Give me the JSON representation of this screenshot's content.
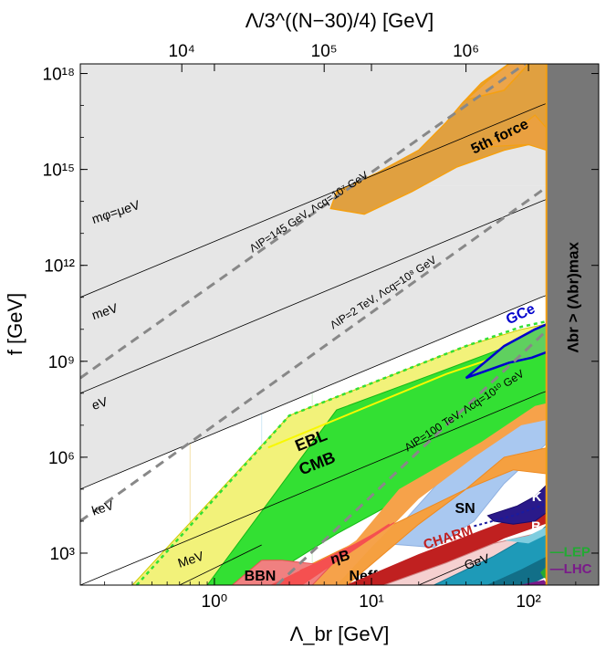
{
  "chart_data": {
    "type": "area",
    "xlabel": "Λ_br [GeV]",
    "ylabel": "f [GeV]",
    "top_axis_label": "Λ/3^((N−30)/4) [GeV]",
    "x_scale": "log",
    "y_scale": "log",
    "xlim": [
      0.14,
      280
    ],
    "ylim": [
      100,
      2e+18
    ],
    "x_ticks": [
      {
        "value": 1,
        "label": "10⁰"
      },
      {
        "value": 10,
        "label": "10¹"
      },
      {
        "value": 100,
        "label": "10²"
      }
    ],
    "y_ticks": [
      {
        "value": 1000,
        "label": "10³"
      },
      {
        "value": 1000000,
        "label": "10⁶"
      },
      {
        "value": 1000000000,
        "label": "10⁹"
      },
      {
        "value": 1000000000000,
        "label": "10¹²"
      },
      {
        "value": 1000000000000000,
        "label": "10¹⁵"
      },
      {
        "value": 1000000000000000000,
        "label": "10¹⁸"
      }
    ],
    "top_ticks": [
      {
        "value": 10000,
        "label": "10⁴"
      },
      {
        "value": 100000,
        "label": "10⁵"
      },
      {
        "value": 1000000,
        "label": "10⁶"
      }
    ],
    "max_lambda_br": 130,
    "max_region_label": "Λbr > (Λbr)max",
    "mass_lines": [
      {
        "label": "mφ=μeV",
        "points": [
          [
            0.14,
            100000000000.0
          ],
          [
            120,
            1e+17
          ],
          [
            133,
            1.2e+17
          ]
        ]
      },
      {
        "label": "meV",
        "points": [
          [
            0.14,
            100000000.0
          ],
          [
            120,
            100000000000000.0
          ],
          [
            133,
            120000000000000.0
          ]
        ]
      },
      {
        "label": "eV",
        "points": [
          [
            0.14,
            100000.0
          ],
          [
            120,
            100000000000.0
          ],
          [
            133,
            120000000000.0
          ]
        ]
      },
      {
        "label": "keV",
        "points": [
          [
            0.14,
            100.0
          ],
          [
            120,
            100000000.0
          ],
          [
            133,
            120000000.0
          ]
        ]
      },
      {
        "label": "MeV",
        "points": [
          [
            0.6,
            100
          ],
          [
            2.0,
            1800
          ]
        ]
      },
      {
        "label": "GeV",
        "points": [
          [
            20,
            100
          ],
          [
            50,
            700
          ]
        ]
      }
    ],
    "dashed_lines": [
      {
        "label": "ΛIP=145 GeV, Λcq=10⁷ GeV",
        "points": [
          [
            0.14,
            300000000.0
          ],
          [
            95,
            2e+18
          ]
        ]
      },
      {
        "label": "ΛIP=2 TeV, Λcq=10⁸ GeV",
        "points": [
          [
            0.14,
            10000.0
          ],
          [
            133,
            300000000000000.0
          ]
        ]
      },
      {
        "label": "ΛIP=100 TeV, Λcq=10¹⁰ GeV",
        "points": [
          [
            2.5,
            100
          ],
          [
            133,
            10000000000.0
          ]
        ]
      }
    ],
    "regions": [
      {
        "label": "5th force",
        "color": "#e0a040"
      },
      {
        "label": "GCe",
        "color": "#0000cc"
      },
      {
        "label": "EBL",
        "color": "#f2f27a"
      },
      {
        "label": "CMB",
        "color": "#33e033"
      },
      {
        "label": "SN",
        "color": "#a9c8f0"
      },
      {
        "label": "K",
        "color": "#2a1a8a"
      },
      {
        "label": "B",
        "color": "#1e9ab8"
      },
      {
        "label": "CHARM",
        "color": "#c02020"
      },
      {
        "label": "ηB",
        "color": "#f55050"
      },
      {
        "label": "BBN",
        "color": "#f08080"
      },
      {
        "label": "Neff",
        "color": "#f5a040"
      },
      {
        "label": "LEP",
        "color": "#22aa33"
      },
      {
        "label": "LHC",
        "color": "#7a1a8a"
      }
    ]
  }
}
